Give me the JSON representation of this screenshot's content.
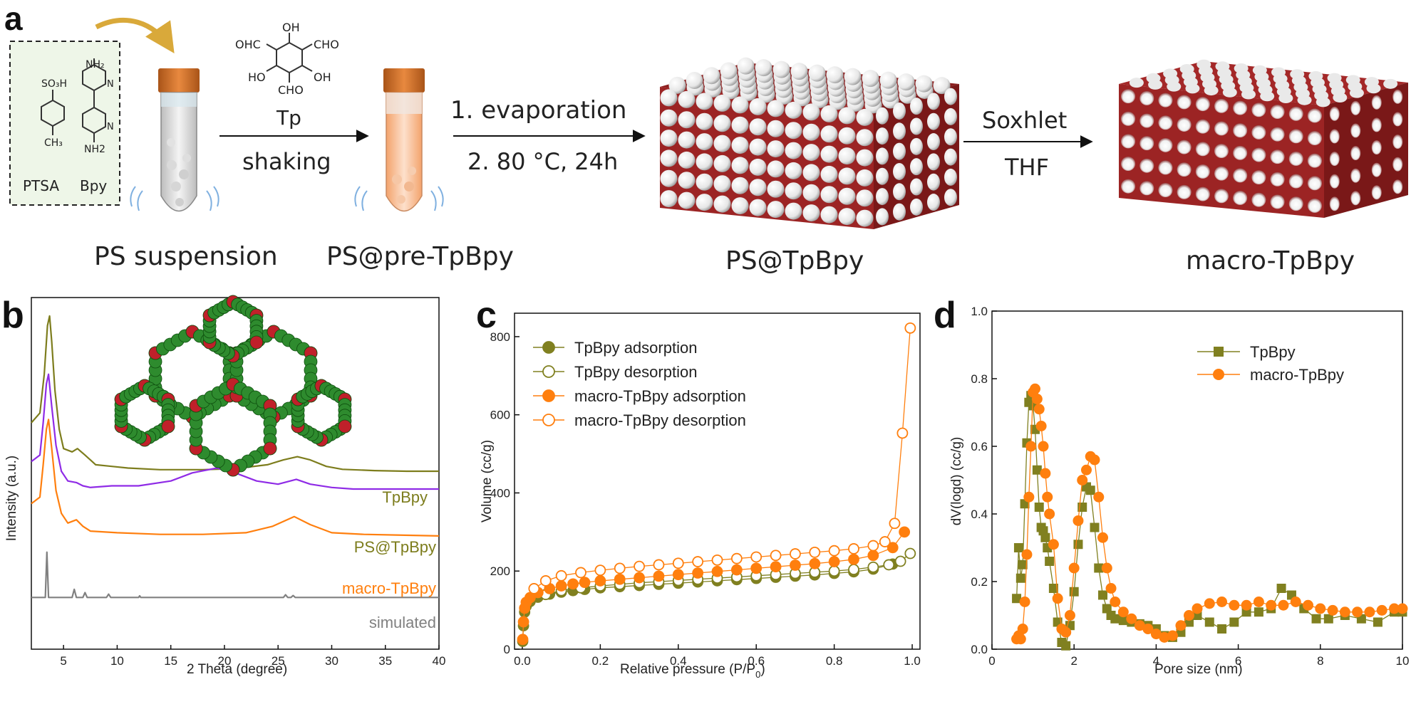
{
  "panel_letters": {
    "a": "a",
    "b": "b",
    "c": "c",
    "d": "d"
  },
  "scheme": {
    "ptsa": "PTSA",
    "bpy": "Bpy",
    "ptsa_groups": {
      "so3h": "SO₃H",
      "ch3": "CH₃"
    },
    "bpy_groups": {
      "nh2_top": "NH₂",
      "nh2_bottom": "NH2",
      "n1": "N",
      "n2": "N"
    },
    "tp_groups": {
      "oh_top": "OH",
      "cho_left": "OHC",
      "cho_right": "CHO",
      "ho_left": "HO",
      "oh_right": "OH",
      "cho_bottom": "CHO"
    },
    "tp_label": "Tp",
    "shaking": "shaking",
    "step2_line1": "1. evaporation",
    "step2_line2": "2. 80 °C, 24h",
    "soxhlet": "Soxhlet",
    "thf": "THF",
    "ps_suspension": "PS suspension",
    "ps_pre": "PS@pre-TpBpy",
    "ps_tpbpy": "PS@TpBpy",
    "macro": "macro-TpBpy"
  },
  "chart_data": [
    {
      "type": "line",
      "panel": "b",
      "xlabel": "2 Theta (degree)",
      "ylabel": "Intensity (a.u.)",
      "xlim": [
        2,
        40
      ],
      "xticks": [
        5,
        10,
        15,
        20,
        25,
        30,
        35,
        40
      ],
      "x_tick_labels": [
        "5",
        "10",
        "15",
        "20",
        "25",
        "30",
        "35",
        "40"
      ],
      "series": [
        {
          "name": "TpBpy",
          "color": "#7d7d1d",
          "x": [
            2.0,
            2.8,
            3.2,
            3.5,
            3.7,
            3.9,
            4.2,
            4.6,
            5.0,
            5.8,
            6.3,
            7.0,
            8.0,
            9.5,
            11,
            14,
            18,
            21,
            24,
            25.5,
            26.8,
            28,
            29.5,
            31,
            34,
            37,
            40
          ],
          "y": [
            0.7,
            0.73,
            0.85,
            1.0,
            1.03,
            0.95,
            0.8,
            0.68,
            0.62,
            0.61,
            0.62,
            0.6,
            0.57,
            0.565,
            0.56,
            0.555,
            0.555,
            0.558,
            0.57,
            0.585,
            0.595,
            0.585,
            0.565,
            0.556,
            0.552,
            0.55,
            0.55
          ]
        },
        {
          "name": "PS@TpBpy",
          "color": "#8f2be6",
          "x": [
            2.0,
            2.8,
            3.1,
            3.4,
            3.6,
            3.9,
            4.3,
            4.8,
            5.4,
            6.2,
            6.8,
            7.5,
            9.5,
            12,
            15,
            17,
            19.3,
            21,
            23,
            25,
            26.7,
            28,
            30,
            32,
            35,
            38,
            40
          ],
          "y": [
            0.58,
            0.6,
            0.7,
            0.82,
            0.85,
            0.75,
            0.63,
            0.55,
            0.52,
            0.515,
            0.505,
            0.5,
            0.505,
            0.505,
            0.52,
            0.545,
            0.56,
            0.545,
            0.52,
            0.51,
            0.525,
            0.51,
            0.5,
            0.495,
            0.495,
            0.495,
            0.495
          ]
        },
        {
          "name": "macro-TpBpy",
          "color": "#ff7f0e",
          "x": [
            2.0,
            2.8,
            3.1,
            3.4,
            3.6,
            3.9,
            4.3,
            4.8,
            5.4,
            6.2,
            6.8,
            7.5,
            10,
            14,
            18,
            22,
            24.5,
            26.5,
            28,
            30,
            33,
            36,
            40
          ],
          "y": [
            0.45,
            0.47,
            0.57,
            0.68,
            0.71,
            0.62,
            0.49,
            0.42,
            0.39,
            0.4,
            0.38,
            0.365,
            0.36,
            0.355,
            0.355,
            0.36,
            0.38,
            0.41,
            0.385,
            0.36,
            0.355,
            0.353,
            0.35
          ]
        },
        {
          "name": "simulated",
          "color": "#808080",
          "x": [
            2.0,
            3.3,
            3.45,
            3.6,
            5.8,
            6.0,
            6.2,
            6.8,
            7.0,
            7.2,
            9.0,
            9.2,
            9.4,
            12.0,
            12.1,
            12.2,
            25.5,
            25.7,
            25.9,
            26.2,
            26.4,
            26.6,
            40
          ],
          "y": [
            0.16,
            0.16,
            0.3,
            0.16,
            0.16,
            0.185,
            0.16,
            0.16,
            0.175,
            0.16,
            0.16,
            0.17,
            0.16,
            0.16,
            0.165,
            0.16,
            0.16,
            0.168,
            0.16,
            0.16,
            0.166,
            0.16,
            0.16
          ]
        }
      ]
    },
    {
      "type": "scatter",
      "panel": "c",
      "xlabel": "Relative pressure (P/P",
      "xlabel_sub": "0",
      "xlabel_end": ")",
      "ylabel": "Volume (cc/g)",
      "xlim": [
        -0.02,
        1.02
      ],
      "ylim": [
        0,
        860
      ],
      "xticks": [
        0.0,
        0.2,
        0.4,
        0.6,
        0.8,
        1.0
      ],
      "x_tick_labels": [
        "0.0",
        "0.2",
        "0.4",
        "0.6",
        "0.8",
        "1.0"
      ],
      "yticks": [
        0,
        200,
        400,
        600,
        800
      ],
      "y_tick_labels": [
        "0",
        "200",
        "400",
        "600",
        "800"
      ],
      "legend_position": "top-left",
      "series": [
        {
          "name": "TpBpy adsorption",
          "color": "#808020",
          "filled": true,
          "x": [
            0.001,
            0.003,
            0.006,
            0.01,
            0.02,
            0.04,
            0.07,
            0.1,
            0.13,
            0.16,
            0.2,
            0.25,
            0.3,
            0.35,
            0.4,
            0.45,
            0.5,
            0.55,
            0.6,
            0.65,
            0.7,
            0.75,
            0.8,
            0.85,
            0.9,
            0.95
          ],
          "y": [
            20,
            60,
            95,
            110,
            122,
            133,
            141,
            146,
            150,
            153,
            157,
            160,
            163,
            166,
            169,
            172,
            175,
            178,
            181,
            184,
            187,
            190,
            194,
            198,
            205,
            218
          ]
        },
        {
          "name": "TpBpy desorption",
          "color": "#808020",
          "filled": false,
          "x": [
            0.995,
            0.97,
            0.94,
            0.9,
            0.85,
            0.8,
            0.75,
            0.7,
            0.65,
            0.6,
            0.55,
            0.5,
            0.45,
            0.4,
            0.35,
            0.3,
            0.25,
            0.2,
            0.15,
            0.1,
            0.06
          ],
          "y": [
            245,
            225,
            216,
            210,
            204,
            200,
            197,
            194,
            191,
            188,
            185,
            182,
            179,
            176,
            173,
            170,
            166,
            162,
            157,
            150,
            140
          ]
        },
        {
          "name": "macro-TpBpy adsorption",
          "color": "#ff7f0e",
          "filled": true,
          "x": [
            0.001,
            0.003,
            0.006,
            0.01,
            0.02,
            0.04,
            0.07,
            0.1,
            0.13,
            0.16,
            0.2,
            0.25,
            0.3,
            0.35,
            0.4,
            0.45,
            0.5,
            0.55,
            0.6,
            0.65,
            0.7,
            0.75,
            0.8,
            0.85,
            0.9,
            0.95,
            0.98
          ],
          "y": [
            25,
            70,
            105,
            120,
            132,
            145,
            155,
            162,
            167,
            171,
            175,
            179,
            183,
            187,
            191,
            195,
            199,
            203,
            207,
            211,
            215,
            219,
            224,
            230,
            240,
            260,
            300
          ]
        },
        {
          "name": "macro-TpBpy desorption",
          "color": "#ff7f0e",
          "filled": false,
          "x": [
            0.995,
            0.975,
            0.955,
            0.93,
            0.9,
            0.85,
            0.8,
            0.75,
            0.7,
            0.65,
            0.6,
            0.55,
            0.5,
            0.45,
            0.4,
            0.35,
            0.3,
            0.25,
            0.2,
            0.15,
            0.1,
            0.06,
            0.03
          ],
          "y": [
            822,
            553,
            322,
            275,
            265,
            257,
            252,
            248,
            244,
            240,
            236,
            232,
            228,
            224,
            220,
            216,
            212,
            207,
            202,
            196,
            188,
            175,
            155
          ]
        }
      ]
    },
    {
      "type": "line",
      "panel": "d",
      "xlabel": "Pore size (nm)",
      "ylabel": "dV(logd) (cc/g)",
      "xlim": [
        0,
        10
      ],
      "ylim": [
        0,
        1.0
      ],
      "xticks": [
        0,
        2,
        4,
        6,
        8,
        10
      ],
      "x_tick_labels": [
        "0",
        "2",
        "4",
        "6",
        "8",
        "10"
      ],
      "yticks": [
        0.0,
        0.2,
        0.4,
        0.6,
        0.8,
        1.0
      ],
      "y_tick_labels": [
        "0.0",
        "0.2",
        "0.4",
        "0.6",
        "0.8",
        "1.0"
      ],
      "legend_position": "top-right",
      "series": [
        {
          "name": "TpBpy",
          "color": "#808020",
          "marker": "square",
          "x": [
            0.6,
            0.65,
            0.7,
            0.75,
            0.8,
            0.85,
            0.9,
            0.95,
            1.0,
            1.05,
            1.1,
            1.15,
            1.2,
            1.25,
            1.3,
            1.35,
            1.4,
            1.5,
            1.6,
            1.7,
            1.8,
            1.9,
            2.0,
            2.1,
            2.2,
            2.3,
            2.4,
            2.5,
            2.6,
            2.7,
            2.8,
            2.9,
            3.0,
            3.2,
            3.4,
            3.6,
            3.8,
            4.0,
            4.2,
            4.4,
            4.6,
            4.8,
            5.0,
            5.3,
            5.6,
            5.9,
            6.2,
            6.5,
            6.8,
            7.05,
            7.3,
            7.6,
            7.9,
            8.2,
            8.6,
            9.0,
            9.4,
            9.8,
            10.0
          ],
          "y": [
            0.15,
            0.3,
            0.21,
            0.25,
            0.43,
            0.61,
            0.73,
            0.75,
            0.72,
            0.65,
            0.53,
            0.42,
            0.36,
            0.35,
            0.33,
            0.3,
            0.26,
            0.18,
            0.08,
            0.02,
            0.01,
            0.07,
            0.17,
            0.31,
            0.42,
            0.48,
            0.47,
            0.36,
            0.24,
            0.16,
            0.12,
            0.1,
            0.09,
            0.085,
            0.08,
            0.075,
            0.07,
            0.06,
            0.04,
            0.035,
            0.05,
            0.08,
            0.1,
            0.08,
            0.06,
            0.08,
            0.11,
            0.11,
            0.12,
            0.18,
            0.16,
            0.12,
            0.09,
            0.09,
            0.1,
            0.09,
            0.08,
            0.11,
            0.11
          ]
        },
        {
          "name": "macro-TpBpy",
          "color": "#ff7f0e",
          "marker": "circle",
          "x": [
            0.6,
            0.65,
            0.7,
            0.75,
            0.8,
            0.85,
            0.9,
            0.95,
            1.0,
            1.05,
            1.1,
            1.15,
            1.2,
            1.25,
            1.3,
            1.35,
            1.4,
            1.5,
            1.6,
            1.7,
            1.8,
            1.9,
            2.0,
            2.1,
            2.2,
            2.3,
            2.4,
            2.5,
            2.6,
            2.7,
            2.8,
            2.9,
            3.0,
            3.2,
            3.4,
            3.6,
            3.8,
            4.0,
            4.2,
            4.4,
            4.6,
            4.8,
            5.0,
            5.3,
            5.6,
            5.9,
            6.2,
            6.5,
            6.8,
            7.1,
            7.4,
            7.7,
            8.0,
            8.3,
            8.6,
            8.9,
            9.2,
            9.5,
            9.8,
            10.0
          ],
          "y": [
            0.03,
            0.04,
            0.03,
            0.06,
            0.14,
            0.28,
            0.45,
            0.6,
            0.76,
            0.77,
            0.74,
            0.71,
            0.66,
            0.6,
            0.52,
            0.45,
            0.4,
            0.31,
            0.15,
            0.06,
            0.05,
            0.1,
            0.24,
            0.38,
            0.5,
            0.53,
            0.57,
            0.56,
            0.45,
            0.33,
            0.24,
            0.18,
            0.14,
            0.11,
            0.09,
            0.07,
            0.06,
            0.045,
            0.035,
            0.04,
            0.07,
            0.1,
            0.12,
            0.135,
            0.14,
            0.13,
            0.13,
            0.14,
            0.13,
            0.13,
            0.14,
            0.13,
            0.12,
            0.115,
            0.11,
            0.11,
            0.11,
            0.115,
            0.12,
            0.12
          ]
        }
      ]
    }
  ]
}
